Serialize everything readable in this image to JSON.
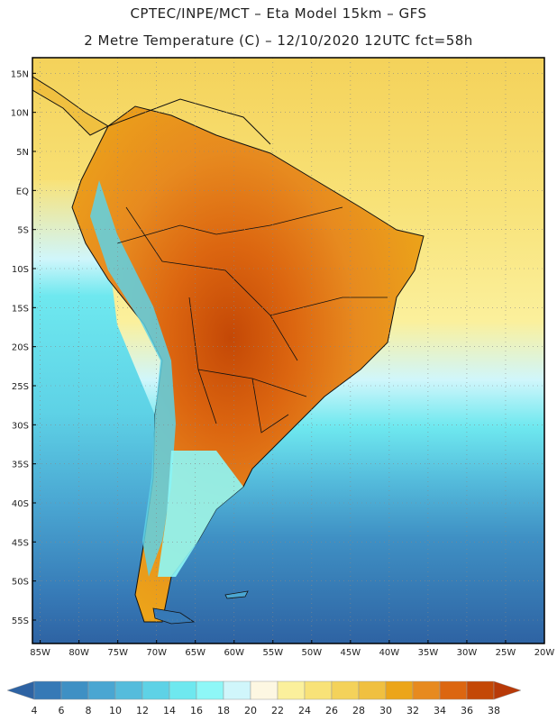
{
  "header": {
    "line1": "CPTEC/INPE/MCT –  Eta Model 15km – GFS",
    "line2": "2 Metre Temperature (C) – 12/10/2020 12UTC fct=58h"
  },
  "map": {
    "region": "South America",
    "lon_range": [
      -86,
      -20
    ],
    "lat_range": [
      -58,
      17
    ],
    "lat_labels": [
      {
        "lat": 15,
        "label": "15N"
      },
      {
        "lat": 10,
        "label": "10N"
      },
      {
        "lat": 5,
        "label": "5N"
      },
      {
        "lat": 0,
        "label": "EQ"
      },
      {
        "lat": -5,
        "label": "5S"
      },
      {
        "lat": -10,
        "label": "10S"
      },
      {
        "lat": -15,
        "label": "15S"
      },
      {
        "lat": -20,
        "label": "20S"
      },
      {
        "lat": -25,
        "label": "25S"
      },
      {
        "lat": -30,
        "label": "30S"
      },
      {
        "lat": -35,
        "label": "35S"
      },
      {
        "lat": -40,
        "label": "40S"
      },
      {
        "lat": -45,
        "label": "45S"
      },
      {
        "lat": -50,
        "label": "50S"
      },
      {
        "lat": -55,
        "label": "55S"
      }
    ],
    "lon_labels": [
      {
        "lon": -85,
        "label": "85W"
      },
      {
        "lon": -80,
        "label": "80W"
      },
      {
        "lon": -75,
        "label": "75W"
      },
      {
        "lon": -70,
        "label": "70W"
      },
      {
        "lon": -65,
        "label": "65W"
      },
      {
        "lon": -60,
        "label": "60W"
      },
      {
        "lon": -55,
        "label": "55W"
      },
      {
        "lon": -50,
        "label": "50W"
      },
      {
        "lon": -45,
        "label": "45W"
      },
      {
        "lon": -40,
        "label": "40W"
      },
      {
        "lon": -35,
        "label": "35W"
      },
      {
        "lon": -30,
        "label": "30W"
      },
      {
        "lon": -25,
        "label": "25W"
      },
      {
        "lon": -20,
        "label": "20W"
      }
    ]
  },
  "legend": {
    "unit": "C",
    "ticks": [
      "4",
      "6",
      "8",
      "10",
      "12",
      "14",
      "16",
      "18",
      "20",
      "22",
      "24",
      "26",
      "28",
      "30",
      "32",
      "34",
      "36",
      "38"
    ],
    "colors": [
      "#2e63a3",
      "#3679b6",
      "#3f90c4",
      "#4aa6d2",
      "#55bcdc",
      "#5ed2e6",
      "#6ee8ef",
      "#8ef7f7",
      "#d0f6fb",
      "#fdf7e2",
      "#fbf09c",
      "#f8e278",
      "#f4d25a",
      "#f0c040",
      "#eca519",
      "#e78a1f",
      "#dc6610",
      "#c44806",
      "#b83a08"
    ]
  },
  "colors": {
    "ocean_warm": "#f8e278",
    "ocean_mid": "#fbf09c",
    "ocean_cool": "#5ed2e6",
    "ocean_cold": "#3679b6",
    "land_hot": "#e78a1f",
    "land_hottest": "#c44806",
    "border": "#111111"
  }
}
